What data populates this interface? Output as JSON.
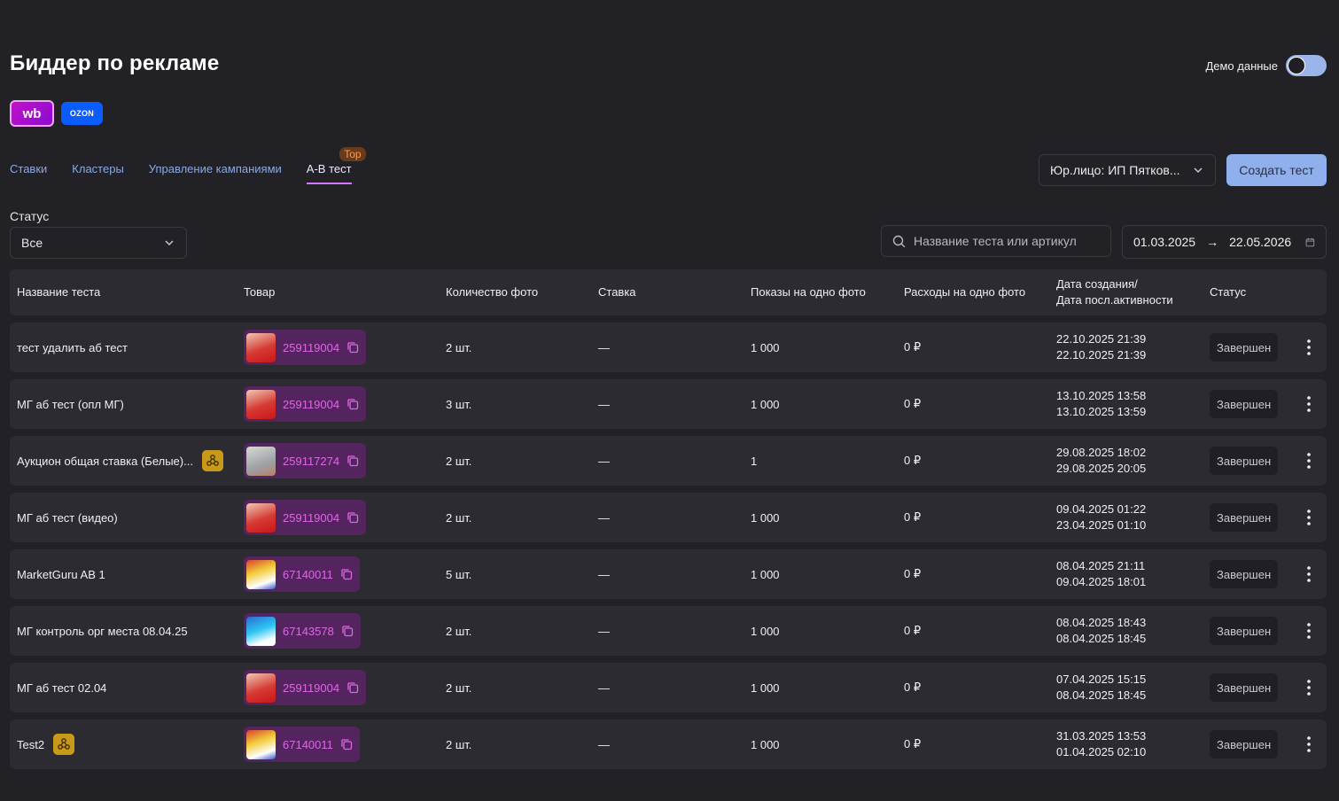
{
  "page_title": "Биддер по рекламе",
  "demo_label": "Демо данные",
  "marketplaces": {
    "wb": "wb",
    "ozon": "OZON"
  },
  "tabs": [
    {
      "label": "Ставки"
    },
    {
      "label": "Кластеры"
    },
    {
      "label": "Управление кампаниями"
    },
    {
      "label": "A-B тест",
      "badge": "Top",
      "active": true
    }
  ],
  "entity_select": "Юр.лицо: ИП Пятков...",
  "create_button": "Создать тест",
  "filter": {
    "label": "Статус",
    "value": "Все"
  },
  "search": {
    "placeholder": "Название теста или артикул"
  },
  "date_range": {
    "from": "01.03.2025",
    "to": "22.05.2026"
  },
  "columns": {
    "name": "Название теста",
    "product": "Товар",
    "photo_count": "Количество фото",
    "bid": "Ставка",
    "views": "Показы на одно фото",
    "spend": "Расходы на одно фото",
    "dates_line1": "Дата создания/",
    "dates_line2": "Дата посл.активности",
    "status": "Статус"
  },
  "rows": [
    {
      "name": "тест удалить аб тест",
      "ai": false,
      "article": "259119004",
      "thumb": "t1",
      "photos": "2 шт.",
      "bid": "—",
      "views": "1 000",
      "spend": "0 ₽",
      "created": "22.10.2025 21:39",
      "last": "22.10.2025 21:39",
      "status": "Завершен"
    },
    {
      "name": "МГ аб тест (опл МГ)",
      "ai": false,
      "article": "259119004",
      "thumb": "t1",
      "photos": "3 шт.",
      "bid": "—",
      "views": "1 000",
      "spend": "0 ₽",
      "created": "13.10.2025 13:58",
      "last": "13.10.2025 13:59",
      "status": "Завершен"
    },
    {
      "name": "Аукцион общая ставка (Белые)...",
      "ai": true,
      "article": "259117274",
      "thumb": "t2",
      "photos": "2 шт.",
      "bid": "—",
      "views": "1",
      "spend": "0 ₽",
      "created": "29.08.2025 18:02",
      "last": "29.08.2025 20:05",
      "status": "Завершен"
    },
    {
      "name": "МГ аб тест (видео)",
      "ai": false,
      "article": "259119004",
      "thumb": "t1",
      "photos": "2 шт.",
      "bid": "—",
      "views": "1 000",
      "spend": "0 ₽",
      "created": "09.04.2025 01:22",
      "last": "23.04.2025 01:10",
      "status": "Завершен"
    },
    {
      "name": "MarketGuru AB 1",
      "ai": false,
      "article": "67140011",
      "thumb": "t3",
      "photos": "5 шт.",
      "bid": "—",
      "views": "1 000",
      "spend": "0 ₽",
      "created": "08.04.2025 21:11",
      "last": "09.04.2025 18:01",
      "status": "Завершен"
    },
    {
      "name": "МГ контроль орг места 08.04.25",
      "ai": false,
      "article": "67143578",
      "thumb": "t4",
      "photos": "2 шт.",
      "bid": "—",
      "views": "1 000",
      "spend": "0 ₽",
      "created": "08.04.2025 18:43",
      "last": "08.04.2025 18:45",
      "status": "Завершен"
    },
    {
      "name": "МГ аб тест 02.04",
      "ai": false,
      "article": "259119004",
      "thumb": "t1",
      "photos": "2 шт.",
      "bid": "—",
      "views": "1 000",
      "spend": "0 ₽",
      "created": "07.04.2025 15:15",
      "last": "08.04.2025 18:45",
      "status": "Завершен"
    },
    {
      "name": "Test2",
      "ai": true,
      "article": "67140011",
      "thumb": "t3",
      "photos": "2 шт.",
      "bid": "—",
      "views": "1 000",
      "spend": "0 ₽",
      "created": "31.03.2025 13:53",
      "last": "01.04.2025 02:10",
      "status": "Завершен"
    }
  ],
  "colors": {
    "accent": "#8fb0ec",
    "tab_active": "#d976ff",
    "article": "#e066e8",
    "product_bg": "#53245e",
    "ai_badge": "#c99a19"
  }
}
